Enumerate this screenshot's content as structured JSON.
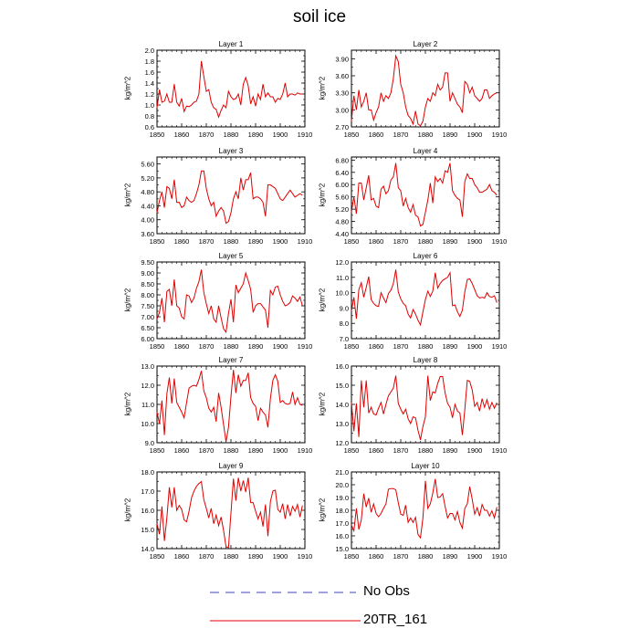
{
  "title": "soil ice",
  "legend": [
    {
      "label": "No Obs",
      "color": "#4040c0",
      "dash": true
    },
    {
      "label": "20TR_161",
      "color": "#e00000",
      "dash": false
    }
  ],
  "chart_data": [
    {
      "type": "line",
      "title": "Layer 1",
      "ylabel": "kg/m^2",
      "xlim": [
        1850,
        1910
      ],
      "ylim": [
        0.6,
        2.0
      ],
      "yticks": [
        "0.6",
        "0.8",
        "1.0",
        "1.2",
        "1.4",
        "1.6",
        "1.8",
        "2.0"
      ],
      "xticks": [
        "1850",
        "1860",
        "1870",
        "1880",
        "1890",
        "1900",
        "1910"
      ],
      "x_start": 1850,
      "values": [
        0.95,
        1.28,
        1.05,
        1.07,
        1.2,
        1.05,
        1.05,
        1.38,
        1.05,
        0.98,
        1.12,
        0.88,
        0.98,
        0.97,
        1.0,
        1.05,
        1.07,
        1.2,
        1.8,
        1.52,
        1.25,
        1.28,
        1.05,
        0.95,
        0.92,
        0.78,
        0.9,
        1.0,
        0.95,
        1.25,
        1.15,
        1.1,
        1.12,
        1.2,
        1.0,
        1.38,
        1.5,
        1.35,
        1.02,
        1.15,
        0.98,
        1.2,
        1.1,
        1.38,
        1.15,
        1.22,
        1.15,
        1.15,
        1.05,
        1.12,
        1.1,
        1.2,
        1.4,
        1.15,
        1.2,
        1.2,
        1.18,
        1.22,
        1.2,
        1.2
      ]
    },
    {
      "type": "line",
      "title": "Layer 2",
      "ylabel": "kg/m^2",
      "xlim": [
        1850,
        1910
      ],
      "ylim": [
        2.7,
        4.05
      ],
      "yticks": [
        "2.70",
        "3.00",
        "3.30",
        "3.60",
        "3.90"
      ],
      "xticks": [
        "1850",
        "1860",
        "1870",
        "1880",
        "1890",
        "1900",
        "1910"
      ],
      "x_start": 1850,
      "values": [
        2.8,
        3.25,
        3.0,
        3.35,
        3.05,
        3.15,
        3.3,
        3.0,
        3.0,
        2.82,
        2.95,
        3.05,
        3.3,
        3.15,
        3.25,
        3.2,
        3.3,
        3.55,
        3.95,
        3.85,
        3.45,
        3.3,
        3.05,
        2.9,
        2.85,
        2.75,
        2.98,
        2.75,
        2.72,
        2.8,
        3.05,
        3.2,
        3.15,
        3.3,
        3.25,
        3.45,
        3.35,
        3.4,
        3.65,
        3.65,
        3.15,
        3.3,
        3.2,
        3.1,
        3.05,
        2.95,
        3.5,
        3.45,
        3.3,
        3.4,
        3.25,
        3.2,
        3.15,
        3.2,
        3.35,
        3.35,
        3.2,
        3.25,
        3.28,
        3.3
      ]
    },
    {
      "type": "line",
      "title": "Layer 3",
      "ylabel": "kg/m^2",
      "xlim": [
        1850,
        1910
      ],
      "ylim": [
        3.6,
        5.8
      ],
      "yticks": [
        "3.60",
        "4.00",
        "4.40",
        "4.80",
        "5.20",
        "5.60"
      ],
      "xticks": [
        "1850",
        "1860",
        "1870",
        "1880",
        "1890",
        "1900",
        "1910"
      ],
      "x_start": 1850,
      "values": [
        4.2,
        4.55,
        4.8,
        4.35,
        4.95,
        4.9,
        4.6,
        5.15,
        4.5,
        4.5,
        4.35,
        4.4,
        4.65,
        4.55,
        4.5,
        4.55,
        4.75,
        5.0,
        5.4,
        5.4,
        4.9,
        4.6,
        4.4,
        4.5,
        4.1,
        4.25,
        4.35,
        4.25,
        3.9,
        3.95,
        4.2,
        4.6,
        4.8,
        4.6,
        5.2,
        4.85,
        5.15,
        5.15,
        5.35,
        4.6,
        4.65,
        4.65,
        4.6,
        4.5,
        4.1,
        5.0,
        5.0,
        4.95,
        4.9,
        4.75,
        4.6,
        4.55,
        4.65,
        4.75,
        4.85,
        4.75,
        4.65,
        4.7,
        4.75,
        4.7
      ]
    },
    {
      "type": "line",
      "title": "Layer 4",
      "ylabel": "kg/m^2",
      "xlim": [
        1850,
        1910
      ],
      "ylim": [
        4.4,
        6.9
      ],
      "yticks": [
        "4.40",
        "4.80",
        "5.20",
        "5.60",
        "6.00",
        "6.40",
        "6.80"
      ],
      "xticks": [
        "1850",
        "1860",
        "1870",
        "1880",
        "1890",
        "1900",
        "1910"
      ],
      "x_start": 1850,
      "values": [
        5.1,
        5.6,
        5.05,
        6.05,
        6.05,
        5.5,
        5.9,
        6.3,
        5.5,
        5.55,
        5.3,
        5.25,
        5.85,
        5.95,
        5.7,
        5.8,
        6.15,
        6.25,
        6.7,
        5.9,
        5.8,
        5.3,
        5.55,
        5.25,
        5.1,
        5.35,
        5.0,
        4.95,
        4.65,
        4.7,
        5.1,
        5.5,
        6.05,
        5.4,
        6.25,
        6.1,
        6.2,
        6.05,
        6.45,
        6.4,
        6.7,
        5.8,
        5.65,
        5.55,
        5.5,
        4.95,
        6.1,
        6.35,
        6.2,
        6.2,
        6.0,
        5.9,
        5.75,
        5.75,
        5.8,
        5.85,
        6.0,
        5.8,
        5.75,
        5.65
      ]
    },
    {
      "type": "line",
      "title": "Layer 5",
      "ylabel": "kg/m^2",
      "xlim": [
        1850,
        1910
      ],
      "ylim": [
        6.0,
        9.5
      ],
      "yticks": [
        "6.00",
        "6.50",
        "7.00",
        "7.50",
        "8.00",
        "8.50",
        "9.00",
        "9.50"
      ],
      "xticks": [
        "1850",
        "1860",
        "1870",
        "1880",
        "1890",
        "1900",
        "1910"
      ],
      "x_start": 1850,
      "values": [
        6.9,
        7.2,
        7.85,
        6.75,
        8.15,
        8.25,
        7.5,
        8.7,
        7.5,
        7.4,
        7.0,
        6.9,
        8.0,
        7.95,
        7.65,
        7.85,
        8.3,
        8.6,
        9.15,
        8.1,
        7.6,
        7.15,
        7.5,
        6.9,
        6.75,
        7.5,
        6.95,
        6.45,
        6.3,
        7.15,
        7.8,
        6.75,
        8.45,
        8.1,
        8.3,
        8.5,
        9.0,
        8.65,
        8.25,
        7.2,
        7.5,
        7.6,
        7.6,
        7.45,
        7.3,
        6.5,
        8.2,
        8.0,
        8.35,
        8.4,
        8.0,
        7.7,
        7.5,
        7.55,
        7.65,
        7.95,
        7.85,
        7.7,
        7.9,
        7.5
      ]
    },
    {
      "type": "line",
      "title": "Layer 6",
      "ylabel": "kg/m^2",
      "xlim": [
        1850,
        1910
      ],
      "ylim": [
        7.0,
        12.0
      ],
      "yticks": [
        "7.0",
        "8.0",
        "9.0",
        "10.0",
        "11.0",
        "12.0"
      ],
      "xticks": [
        "1850",
        "1860",
        "1870",
        "1880",
        "1890",
        "1900",
        "1910"
      ],
      "x_start": 1850,
      "values": [
        8.8,
        9.7,
        8.3,
        10.2,
        10.65,
        9.7,
        10.35,
        11.05,
        9.55,
        9.3,
        9.15,
        9.1,
        10.0,
        9.65,
        9.35,
        9.95,
        10.15,
        10.6,
        11.5,
        10.05,
        9.6,
        9.3,
        9.15,
        8.6,
        8.35,
        8.9,
        8.6,
        8.2,
        7.9,
        8.75,
        9.55,
        10.1,
        9.75,
        10.1,
        11.3,
        10.3,
        10.6,
        10.8,
        10.9,
        11.0,
        11.3,
        9.15,
        9.2,
        8.75,
        8.45,
        8.85,
        10.05,
        10.85,
        10.9,
        10.6,
        10.2,
        9.8,
        9.65,
        9.7,
        9.65,
        10.0,
        9.75,
        9.7,
        9.8,
        9.35
      ]
    },
    {
      "type": "line",
      "title": "Layer 7",
      "ylabel": "kg/m^2",
      "xlim": [
        1850,
        1910
      ],
      "ylim": [
        9.0,
        13.0
      ],
      "yticks": [
        "9.0",
        "10.0",
        "11.0",
        "12.0",
        "13.0"
      ],
      "xticks": [
        "1850",
        "1860",
        "1870",
        "1880",
        "1890",
        "1900",
        "1910"
      ],
      "x_start": 1850,
      "values": [
        10.6,
        10.0,
        11.2,
        9.4,
        11.55,
        12.4,
        11.05,
        12.35,
        11.1,
        10.85,
        10.6,
        10.3,
        11.1,
        11.85,
        11.95,
        12.0,
        11.95,
        12.3,
        12.75,
        11.7,
        11.35,
        10.8,
        10.6,
        10.85,
        10.1,
        11.6,
        10.85,
        9.95,
        9.05,
        9.8,
        11.4,
        12.8,
        11.6,
        12.55,
        11.95,
        12.25,
        12.25,
        12.65,
        11.35,
        11.05,
        10.9,
        10.15,
        10.8,
        10.6,
        10.45,
        9.8,
        11.3,
        12.25,
        12.55,
        12.2,
        11.1,
        11.2,
        11.05,
        11.0,
        11.05,
        11.65,
        11.0,
        11.35,
        11.0,
        10.95
      ]
    },
    {
      "type": "line",
      "title": "Layer 8",
      "ylabel": "kg/m^2",
      "xlim": [
        1850,
        1910
      ],
      "ylim": [
        12.0,
        16.0
      ],
      "yticks": [
        "12.0",
        "13.0",
        "14.0",
        "15.0",
        "16.0"
      ],
      "xticks": [
        "1850",
        "1860",
        "1870",
        "1880",
        "1890",
        "1900",
        "1910"
      ],
      "x_start": 1850,
      "values": [
        14.1,
        12.6,
        14.05,
        12.3,
        15.25,
        13.85,
        15.25,
        13.55,
        13.85,
        13.5,
        13.45,
        13.8,
        14.1,
        13.5,
        14.0,
        14.45,
        14.65,
        14.85,
        15.5,
        14.05,
        13.75,
        13.5,
        13.75,
        13.25,
        13.0,
        13.35,
        13.3,
        12.65,
        12.15,
        12.85,
        13.35,
        15.5,
        14.2,
        14.65,
        14.6,
        15.1,
        15.45,
        15.45,
        14.6,
        14.05,
        13.85,
        13.3,
        14.0,
        13.65,
        13.55,
        12.4,
        13.75,
        15.25,
        15.2,
        14.75,
        13.9,
        14.1,
        13.65,
        14.3,
        13.85,
        14.25,
        13.75,
        14.1,
        13.8,
        14.1
      ]
    },
    {
      "type": "line",
      "title": "Layer 9",
      "ylabel": "kg/m^2",
      "xlim": [
        1850,
        1910
      ],
      "ylim": [
        14.0,
        18.0
      ],
      "yticks": [
        "14.0",
        "15.0",
        "16.0",
        "17.0",
        "18.0"
      ],
      "xticks": [
        "1850",
        "1860",
        "1870",
        "1880",
        "1890",
        "1900",
        "1910"
      ],
      "x_start": 1850,
      "values": [
        15.3,
        14.75,
        16.2,
        14.4,
        15.6,
        17.2,
        16.15,
        17.2,
        16.0,
        16.25,
        16.05,
        15.5,
        15.4,
        15.95,
        16.65,
        17.0,
        17.25,
        17.4,
        17.5,
        16.55,
        16.1,
        15.6,
        16.1,
        15.3,
        15.75,
        15.2,
        15.65,
        14.95,
        14.1,
        14.05,
        15.85,
        17.65,
        16.5,
        17.7,
        17.0,
        17.55,
        16.95,
        17.7,
        16.4,
        16.4,
        15.95,
        15.55,
        15.9,
        15.15,
        16.3,
        14.65,
        16.45,
        17.0,
        17.05,
        16.05,
        15.9,
        16.35,
        15.55,
        16.3,
        15.7,
        16.2,
        15.95,
        16.3,
        15.65,
        16.25
      ]
    },
    {
      "type": "line",
      "title": "Layer 10",
      "ylabel": "kg/m^2",
      "xlim": [
        1850,
        1910
      ],
      "ylim": [
        15.0,
        21.0
      ],
      "yticks": [
        "15.0",
        "16.0",
        "17.0",
        "18.0",
        "19.0",
        "20.0",
        "21.0"
      ],
      "xticks": [
        "1850",
        "1860",
        "1870",
        "1880",
        "1890",
        "1900",
        "1910"
      ],
      "x_start": 1850,
      "values": [
        16.85,
        16.4,
        18.15,
        16.5,
        17.25,
        19.3,
        18.25,
        18.95,
        17.85,
        18.5,
        17.75,
        17.5,
        17.75,
        18.15,
        18.5,
        19.65,
        19.7,
        19.7,
        19.6,
        18.6,
        17.7,
        17.6,
        18.4,
        17.05,
        17.4,
        17.05,
        17.45,
        16.1,
        15.85,
        17.4,
        20.3,
        18.15,
        18.5,
        19.35,
        20.45,
        19.0,
        19.05,
        19.3,
        18.3,
        17.4,
        17.75,
        17.75,
        17.25,
        17.9,
        17.05,
        16.6,
        18.15,
        18.5,
        19.85,
        18.85,
        17.7,
        18.2,
        17.55,
        18.45,
        18.0,
        18.0,
        17.55,
        17.95,
        17.4,
        18.25
      ]
    }
  ]
}
